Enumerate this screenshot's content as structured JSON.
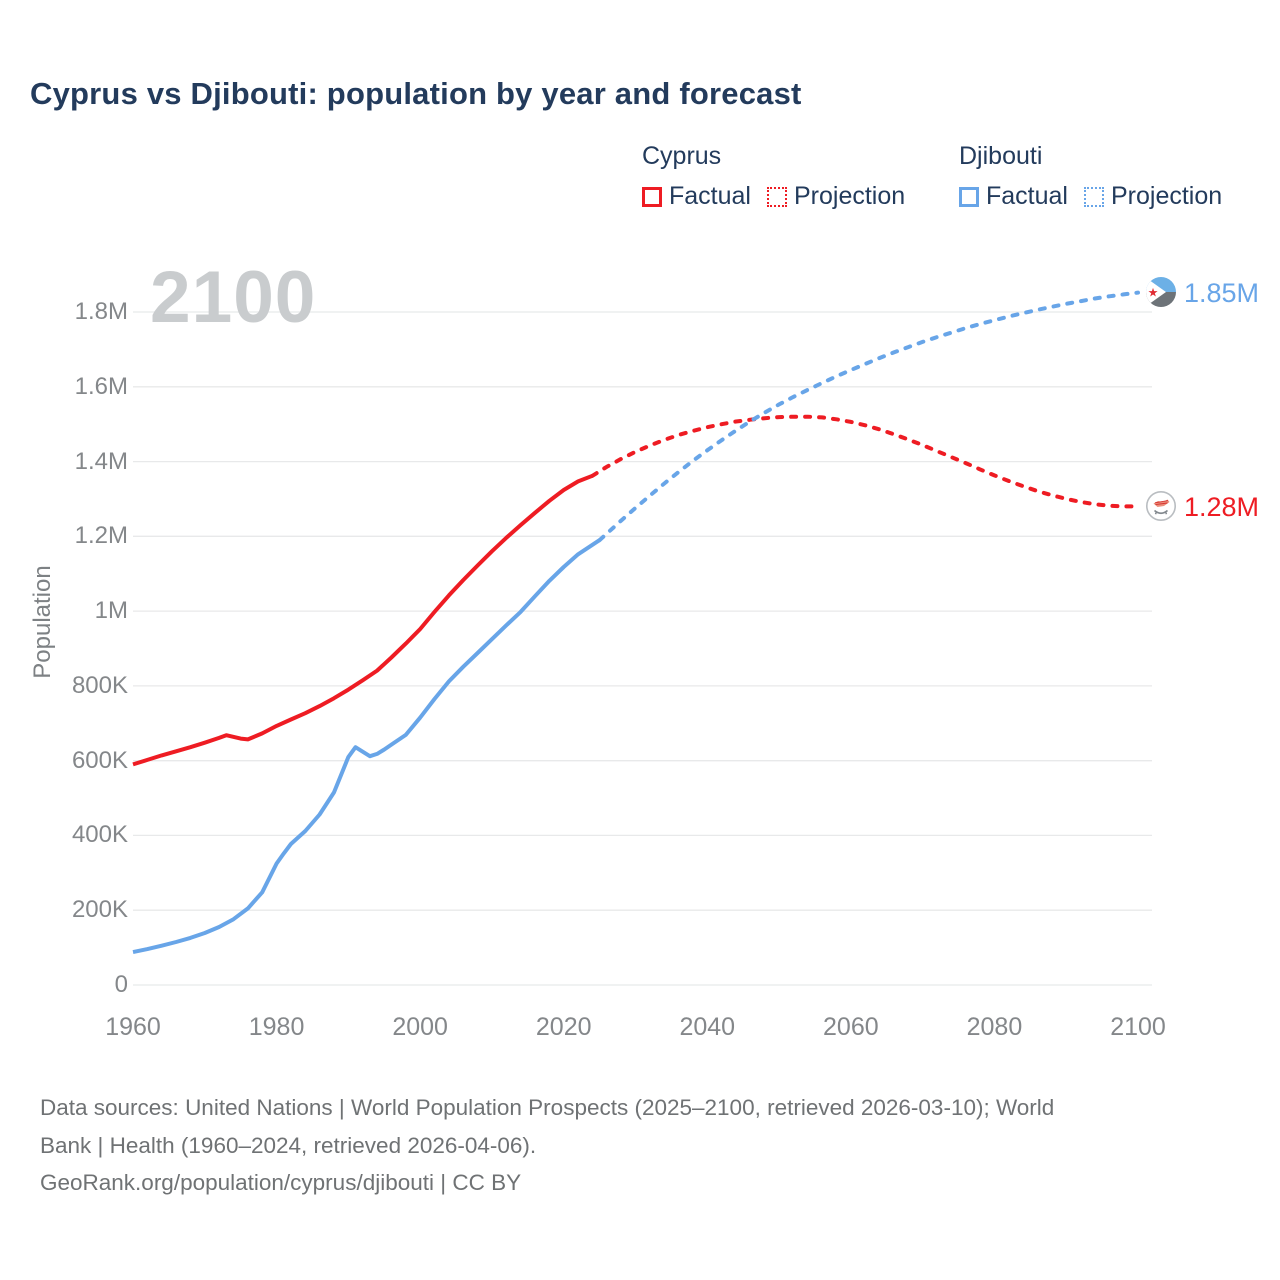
{
  "title": "Cyprus vs Djibouti: population by year and forecast",
  "watermark": "2100",
  "colors": {
    "cyprus": "#ee1c23",
    "djibouti": "#68a5e8",
    "title_text": "#233b5c",
    "axis_text": "#84878a",
    "grid": "#e8e9ea",
    "watermark_text": "#c9ccce",
    "footer_text": "#6f7274"
  },
  "legend": {
    "groups": [
      {
        "name": "Cyprus",
        "color": "#ee1c23",
        "items": [
          {
            "label": "Factual",
            "style": "solid"
          },
          {
            "label": "Projection",
            "style": "dotted"
          }
        ]
      },
      {
        "name": "Djibouti",
        "color": "#68a5e8",
        "items": [
          {
            "label": "Factual",
            "style": "solid"
          },
          {
            "label": "Projection",
            "style": "dotted"
          }
        ]
      }
    ]
  },
  "end_labels": {
    "djibouti": "1.85M",
    "cyprus": "1.28M"
  },
  "axes": {
    "y_label": "Population",
    "y_ticks": [
      {
        "label": "0",
        "value": 0
      },
      {
        "label": "200K",
        "value": 200000
      },
      {
        "label": "400K",
        "value": 400000
      },
      {
        "label": "600K",
        "value": 600000
      },
      {
        "label": "800K",
        "value": 800000
      },
      {
        "label": "1M",
        "value": 1000000
      },
      {
        "label": "1.2M",
        "value": 1200000
      },
      {
        "label": "1.4M",
        "value": 1400000
      },
      {
        "label": "1.6M",
        "value": 1600000
      },
      {
        "label": "1.8M",
        "value": 1800000
      }
    ],
    "x_ticks": [
      {
        "label": "1960",
        "value": 1960
      },
      {
        "label": "1980",
        "value": 1980
      },
      {
        "label": "2000",
        "value": 2000
      },
      {
        "label": "2020",
        "value": 2020
      },
      {
        "label": "2040",
        "value": 2040
      },
      {
        "label": "2060",
        "value": 2060
      },
      {
        "label": "2080",
        "value": 2080
      },
      {
        "label": "2100",
        "value": 2100
      }
    ]
  },
  "footer": {
    "line1": "Data sources: United Nations | World Population Prospects (2025–2100, retrieved 2026-03-10); World",
    "line2": "Bank | Health (1960–2024, retrieved 2026-04-06).",
    "line3": "GeoRank.org/population/cyprus/djibouti | CC BY"
  },
  "chart_data": {
    "type": "line",
    "title": "Cyprus vs Djibouti: population by year and forecast",
    "xlabel": "",
    "ylabel": "Population",
    "x_range": [
      1960,
      2100
    ],
    "y_range": [
      0,
      1852000
    ],
    "grid": "horizontal",
    "legend_position": "top-right",
    "series": [
      {
        "id": "cyprus-factual",
        "name": "Cyprus Factual",
        "color": "#ee1c23",
        "style": "solid",
        "points": [
          [
            1960,
            590000
          ],
          [
            1962,
            602000
          ],
          [
            1964,
            614000
          ],
          [
            1966,
            625000
          ],
          [
            1968,
            636000
          ],
          [
            1970,
            648000
          ],
          [
            1972,
            661000
          ],
          [
            1973,
            668000
          ],
          [
            1975,
            659000
          ],
          [
            1976,
            657000
          ],
          [
            1978,
            673000
          ],
          [
            1980,
            693000
          ],
          [
            1982,
            710000
          ],
          [
            1984,
            727000
          ],
          [
            1986,
            746000
          ],
          [
            1988,
            767000
          ],
          [
            1990,
            790000
          ],
          [
            1992,
            815000
          ],
          [
            1994,
            841000
          ],
          [
            1996,
            876000
          ],
          [
            1998,
            913000
          ],
          [
            2000,
            952000
          ],
          [
            2002,
            998000
          ],
          [
            2004,
            1042000
          ],
          [
            2006,
            1083000
          ],
          [
            2008,
            1122000
          ],
          [
            2010,
            1160000
          ],
          [
            2012,
            1196000
          ],
          [
            2014,
            1230000
          ],
          [
            2016,
            1263000
          ],
          [
            2018,
            1295000
          ],
          [
            2020,
            1324000
          ],
          [
            2022,
            1347000
          ],
          [
            2024,
            1362000
          ]
        ]
      },
      {
        "id": "cyprus-projection",
        "name": "Cyprus Projection",
        "color": "#ee1c23",
        "style": "dotted",
        "points": [
          [
            2024,
            1362000
          ],
          [
            2026,
            1386000
          ],
          [
            2028,
            1407000
          ],
          [
            2030,
            1426000
          ],
          [
            2032,
            1443000
          ],
          [
            2034,
            1458000
          ],
          [
            2036,
            1471000
          ],
          [
            2038,
            1482000
          ],
          [
            2040,
            1492000
          ],
          [
            2042,
            1500000
          ],
          [
            2044,
            1507000
          ],
          [
            2046,
            1512000
          ],
          [
            2048,
            1516000
          ],
          [
            2050,
            1519000
          ],
          [
            2052,
            1520000
          ],
          [
            2054,
            1520000
          ],
          [
            2056,
            1518000
          ],
          [
            2058,
            1513000
          ],
          [
            2060,
            1506000
          ],
          [
            2062,
            1497000
          ],
          [
            2064,
            1486000
          ],
          [
            2066,
            1473000
          ],
          [
            2068,
            1459000
          ],
          [
            2070,
            1444000
          ],
          [
            2072,
            1428000
          ],
          [
            2074,
            1412000
          ],
          [
            2076,
            1396000
          ],
          [
            2078,
            1379000
          ],
          [
            2080,
            1363000
          ],
          [
            2082,
            1348000
          ],
          [
            2084,
            1334000
          ],
          [
            2086,
            1321000
          ],
          [
            2088,
            1310000
          ],
          [
            2090,
            1300000
          ],
          [
            2092,
            1292000
          ],
          [
            2094,
            1286000
          ],
          [
            2096,
            1282000
          ],
          [
            2098,
            1280000
          ],
          [
            2100,
            1280000
          ]
        ]
      },
      {
        "id": "djibouti-factual",
        "name": "Djibouti Factual",
        "color": "#68a5e8",
        "style": "solid",
        "points": [
          [
            1960,
            88000
          ],
          [
            1962,
            96000
          ],
          [
            1964,
            105000
          ],
          [
            1966,
            115000
          ],
          [
            1968,
            126000
          ],
          [
            1970,
            139000
          ],
          [
            1972,
            155000
          ],
          [
            1974,
            176000
          ],
          [
            1976,
            205000
          ],
          [
            1978,
            248000
          ],
          [
            1980,
            325000
          ],
          [
            1981,
            352000
          ],
          [
            1982,
            377000
          ],
          [
            1984,
            412000
          ],
          [
            1986,
            456000
          ],
          [
            1988,
            515000
          ],
          [
            1990,
            610000
          ],
          [
            1991,
            636000
          ],
          [
            1992,
            624000
          ],
          [
            1993,
            612000
          ],
          [
            1994,
            618000
          ],
          [
            1995,
            630000
          ],
          [
            1996,
            643000
          ],
          [
            1998,
            669000
          ],
          [
            2000,
            715000
          ],
          [
            2002,
            765000
          ],
          [
            2004,
            812000
          ],
          [
            2006,
            851000
          ],
          [
            2008,
            888000
          ],
          [
            2010,
            925000
          ],
          [
            2012,
            962000
          ],
          [
            2014,
            998000
          ],
          [
            2016,
            1040000
          ],
          [
            2018,
            1081000
          ],
          [
            2020,
            1118000
          ],
          [
            2022,
            1152000
          ],
          [
            2025,
            1190000
          ]
        ]
      },
      {
        "id": "djibouti-projection",
        "name": "Djibouti Projection",
        "color": "#68a5e8",
        "style": "dotted",
        "points": [
          [
            2025,
            1190000
          ],
          [
            2028,
            1242000
          ],
          [
            2030,
            1276000
          ],
          [
            2032,
            1309000
          ],
          [
            2034,
            1341000
          ],
          [
            2036,
            1372000
          ],
          [
            2038,
            1402000
          ],
          [
            2040,
            1430000
          ],
          [
            2042,
            1457000
          ],
          [
            2044,
            1483000
          ],
          [
            2046,
            1508000
          ],
          [
            2048,
            1531000
          ],
          [
            2050,
            1553000
          ],
          [
            2052,
            1573000
          ],
          [
            2054,
            1592000
          ],
          [
            2056,
            1610000
          ],
          [
            2058,
            1628000
          ],
          [
            2060,
            1645000
          ],
          [
            2062,
            1661000
          ],
          [
            2064,
            1677000
          ],
          [
            2066,
            1692000
          ],
          [
            2068,
            1706000
          ],
          [
            2070,
            1720000
          ],
          [
            2072,
            1733000
          ],
          [
            2074,
            1745000
          ],
          [
            2076,
            1757000
          ],
          [
            2078,
            1768000
          ],
          [
            2080,
            1778000
          ],
          [
            2082,
            1788000
          ],
          [
            2084,
            1797000
          ],
          [
            2086,
            1806000
          ],
          [
            2088,
            1814000
          ],
          [
            2090,
            1822000
          ],
          [
            2092,
            1829000
          ],
          [
            2094,
            1836000
          ],
          [
            2096,
            1842000
          ],
          [
            2098,
            1847000
          ],
          [
            2100,
            1852000
          ]
        ]
      }
    ]
  }
}
